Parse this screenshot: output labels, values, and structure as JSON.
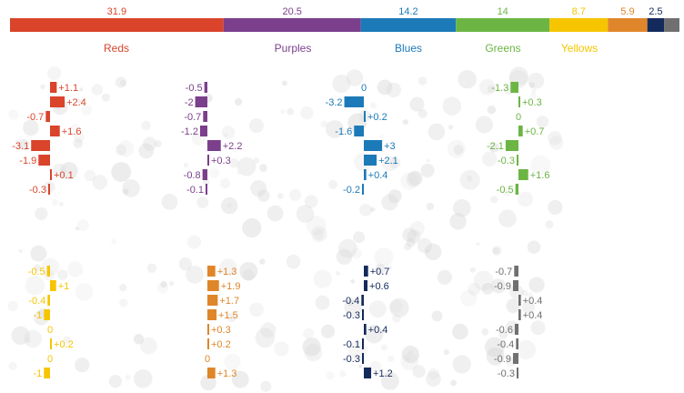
{
  "chart_data": {
    "type": "bar",
    "title": "",
    "summary_bar": {
      "segments": [
        {
          "label": "31.9",
          "value": 31.9,
          "color": "#d9442b"
        },
        {
          "label": "20.5",
          "value": 20.5,
          "color": "#7b3f8c"
        },
        {
          "label": "14.2",
          "value": 14.2,
          "color": "#1c7ab8"
        },
        {
          "label": "14",
          "value": 14,
          "color": "#6cb544"
        },
        {
          "label": "8.7",
          "value": 8.7,
          "color": "#f6c500"
        },
        {
          "label": "5.9",
          "value": 5.9,
          "color": "#e0862a"
        },
        {
          "label": "2.5",
          "value": 2.5,
          "color": "#142a5c"
        },
        {
          "label": "",
          "value": 2.3,
          "color": "#707070"
        }
      ]
    },
    "group_labels": [
      {
        "text": "Reds",
        "color": "#d9442b"
      },
      {
        "text": "Purples",
        "color": "#7b3f8c"
      },
      {
        "text": "Blues",
        "color": "#1c7ab8"
      },
      {
        "text": "Greens",
        "color": "#6cb544"
      },
      {
        "text": "Yellows",
        "color": "#f6c500"
      }
    ],
    "panels": [
      {
        "color": "#d9442b",
        "values": [
          {
            "label": "+1.1",
            "value": 1.1
          },
          {
            "label": "+2.4",
            "value": 2.4
          },
          {
            "label": "-0.7",
            "value": -0.7
          },
          {
            "label": "+1.6",
            "value": 1.6
          },
          {
            "label": "-3.1",
            "value": -3.1
          },
          {
            "label": "-1.9",
            "value": -1.9
          },
          {
            "label": "+0.1",
            "value": 0.1
          },
          {
            "label": "-0.3",
            "value": -0.3
          }
        ]
      },
      {
        "color": "#7b3f8c",
        "values": [
          {
            "label": "-0.5",
            "value": -0.5
          },
          {
            "label": "-2",
            "value": -2
          },
          {
            "label": "-0.7",
            "value": -0.7
          },
          {
            "label": "-1.2",
            "value": -1.2
          },
          {
            "label": "+2.2",
            "value": 2.2
          },
          {
            "label": "+0.3",
            "value": 0.3
          },
          {
            "label": "-0.8",
            "value": -0.8
          },
          {
            "label": "-0.1",
            "value": -0.1
          }
        ]
      },
      {
        "color": "#1c7ab8",
        "values": [
          {
            "label": "0",
            "value": 0
          },
          {
            "label": "-3.2",
            "value": -3.2
          },
          {
            "label": "+0.2",
            "value": 0.2
          },
          {
            "label": "-1.6",
            "value": -1.6
          },
          {
            "label": "+3",
            "value": 3
          },
          {
            "label": "+2.1",
            "value": 2.1
          },
          {
            "label": "+0.4",
            "value": 0.4
          },
          {
            "label": "-0.2",
            "value": -0.2
          }
        ]
      },
      {
        "color": "#6cb544",
        "values": [
          {
            "label": "-1.3",
            "value": -1.3
          },
          {
            "label": "+0.3",
            "value": 0.3
          },
          {
            "label": "0",
            "value": 0
          },
          {
            "label": "+0.7",
            "value": 0.7
          },
          {
            "label": "-2.1",
            "value": -2.1
          },
          {
            "label": "-0.3",
            "value": -0.3
          },
          {
            "label": "+1.6",
            "value": 1.6
          },
          {
            "label": "-0.5",
            "value": -0.5
          }
        ]
      },
      {
        "color": "#f6c500",
        "values": [
          {
            "label": "-0.5",
            "value": -0.5
          },
          {
            "label": "+1",
            "value": 1
          },
          {
            "label": "-0.4",
            "value": -0.4
          },
          {
            "label": "-1",
            "value": -1
          },
          {
            "label": "0",
            "value": 0
          },
          {
            "label": "+0.2",
            "value": 0.2
          },
          {
            "label": "0",
            "value": 0
          },
          {
            "label": "-1",
            "value": -1
          }
        ]
      },
      {
        "color": "#e0862a",
        "values": [
          {
            "label": "+1.3",
            "value": 1.3
          },
          {
            "label": "+1.9",
            "value": 1.9
          },
          {
            "label": "+1.7",
            "value": 1.7
          },
          {
            "label": "+1.5",
            "value": 1.5
          },
          {
            "label": "+0.3",
            "value": 0.3
          },
          {
            "label": "+0.2",
            "value": 0.2
          },
          {
            "label": "0",
            "value": 0
          },
          {
            "label": "+1.3",
            "value": 1.3
          }
        ]
      },
      {
        "color": "#142a5c",
        "values": [
          {
            "label": "+0.7",
            "value": 0.7
          },
          {
            "label": "+0.6",
            "value": 0.6
          },
          {
            "label": "-0.4",
            "value": -0.4
          },
          {
            "label": "-0.3",
            "value": -0.3
          },
          {
            "label": "+0.4",
            "value": 0.4
          },
          {
            "label": "-0.1",
            "value": -0.1
          },
          {
            "label": "-0.3",
            "value": -0.3
          },
          {
            "label": "+1.2",
            "value": 1.2
          }
        ]
      },
      {
        "color": "#707070",
        "values": [
          {
            "label": "-0.7",
            "value": -0.7
          },
          {
            "label": "-0.9",
            "value": -0.9
          },
          {
            "label": "+0.4",
            "value": 0.4
          },
          {
            "label": "+0.4",
            "value": 0.4
          },
          {
            "label": "-0.6",
            "value": -0.6
          },
          {
            "label": "-0.4",
            "value": -0.4
          },
          {
            "label": "-0.9",
            "value": -0.9
          },
          {
            "label": "-0.3",
            "value": -0.3
          }
        ]
      }
    ]
  }
}
